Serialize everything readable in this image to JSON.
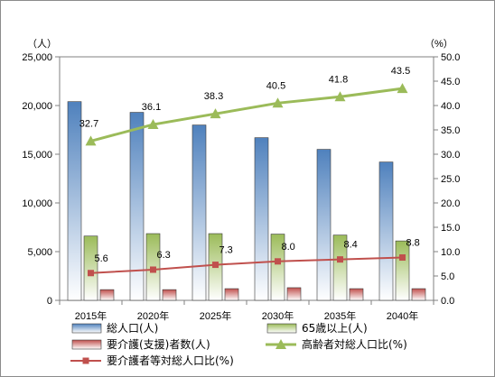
{
  "chart_data": {
    "type": "bar",
    "categories": [
      "2015年",
      "2020年",
      "2025年",
      "2030年",
      "2035年",
      "2040年"
    ],
    "y_left": {
      "unit_label": "（人）",
      "min": 0,
      "max": 25000,
      "step": 5000,
      "ticks": [
        "0",
        "5,000",
        "10,000",
        "15,000",
        "20,000",
        "25,000"
      ]
    },
    "y_right": {
      "unit_label": "（%）",
      "min": 0,
      "max": 50,
      "step": 5,
      "ticks": [
        "0.0",
        "5.0",
        "10.0",
        "15.0",
        "20.0",
        "25.0",
        "30.0",
        "35.0",
        "40.0",
        "45.0",
        "50.0"
      ]
    },
    "series": [
      {
        "name": "総人口(人)",
        "kind": "bar",
        "axis": "left",
        "color": "#4f81bd",
        "values": [
          20400,
          19300,
          18000,
          16700,
          15500,
          14200
        ]
      },
      {
        "name": "65歳以上(人)",
        "kind": "bar",
        "axis": "left",
        "color": "#9bbb59",
        "values": [
          6600,
          6850,
          6850,
          6800,
          6700,
          6100
        ]
      },
      {
        "name": "要介護(支援)者数(人)",
        "kind": "bar",
        "axis": "left",
        "color": "#c0504d",
        "values": [
          1100,
          1100,
          1200,
          1300,
          1200,
          1200
        ]
      },
      {
        "name": "高齢者対総人口比(%)",
        "kind": "line",
        "axis": "right",
        "color": "#9bbb59",
        "values": [
          32.7,
          36.1,
          38.3,
          40.5,
          41.8,
          43.5
        ],
        "labels": [
          "32.7",
          "36.1",
          "38.3",
          "40.5",
          "41.8",
          "43.5"
        ]
      },
      {
        "name": "要介護者等対総人口比(%)",
        "kind": "line",
        "axis": "right",
        "color": "#c0504d",
        "values": [
          5.6,
          6.3,
          7.3,
          8.0,
          8.4,
          8.8
        ],
        "labels": [
          "5.6",
          "6.3",
          "7.3",
          "8.0",
          "8.4",
          "8.8"
        ]
      }
    ],
    "grid": false,
    "legend_position": "bottom"
  }
}
